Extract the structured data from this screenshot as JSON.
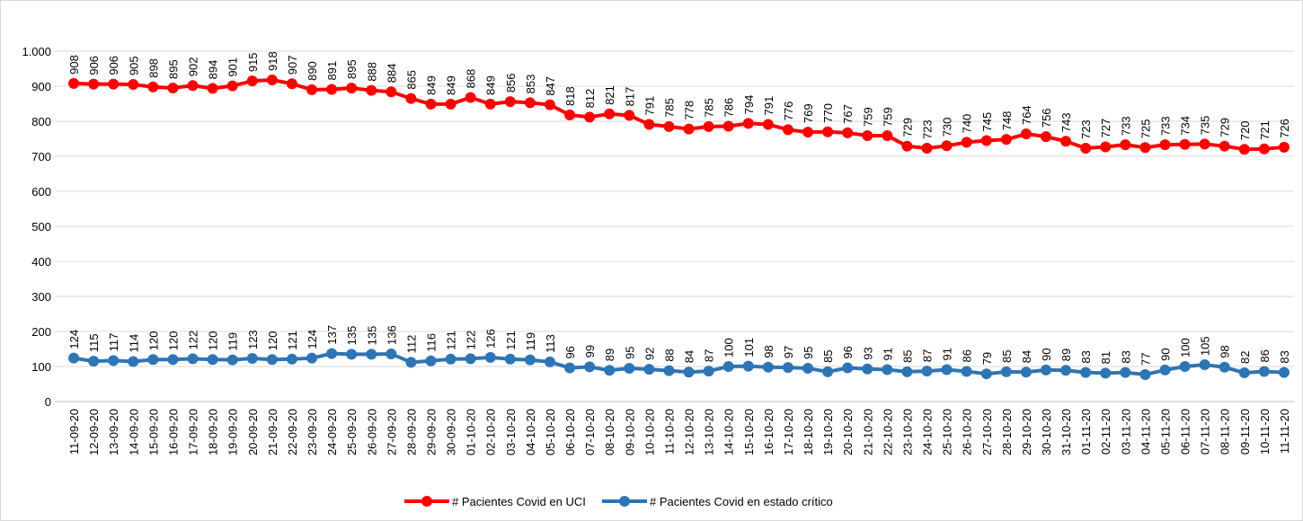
{
  "chart_data": {
    "type": "line",
    "categories": [
      "11-09-20",
      "12-09-20",
      "13-09-20",
      "14-09-20",
      "15-09-20",
      "16-09-20",
      "17-09-20",
      "18-09-20",
      "19-09-20",
      "20-09-20",
      "21-09-20",
      "22-09-20",
      "23-09-20",
      "24-09-20",
      "25-09-20",
      "26-09-20",
      "27-09-20",
      "28-09-20",
      "29-09-20",
      "30-09-20",
      "01-10-20",
      "02-10-20",
      "03-10-20",
      "04-10-20",
      "05-10-20",
      "06-10-20",
      "07-10-20",
      "08-10-20",
      "09-10-20",
      "10-10-20",
      "11-10-20",
      "12-10-20",
      "13-10-20",
      "14-10-20",
      "15-10-20",
      "16-10-20",
      "17-10-20",
      "18-10-20",
      "19-10-20",
      "20-10-20",
      "21-10-20",
      "22-10-20",
      "23-10-20",
      "24-10-20",
      "25-10-20",
      "26-10-20",
      "27-10-20",
      "28-10-20",
      "29-10-20",
      "30-10-20",
      "31-10-20",
      "01-11-20",
      "02-11-20",
      "03-11-20",
      "04-11-20",
      "05-11-20",
      "06-11-20",
      "07-11-20",
      "08-11-20",
      "09-11-20",
      "10-11-20",
      "11-11-20"
    ],
    "series": [
      {
        "name": "# Pacientes Covid en UCI",
        "color": "#ff0000",
        "values": [
          908,
          906,
          906,
          905,
          898,
          895,
          902,
          894,
          901,
          915,
          918,
          907,
          890,
          891,
          895,
          888,
          884,
          865,
          849,
          849,
          868,
          849,
          856,
          853,
          847,
          818,
          812,
          821,
          817,
          791,
          785,
          778,
          785,
          786,
          794,
          791,
          776,
          769,
          770,
          767,
          759,
          759,
          729,
          723,
          730,
          740,
          745,
          748,
          764,
          756,
          743,
          723,
          727,
          733,
          725,
          733,
          734,
          735,
          729,
          720,
          721,
          726
        ]
      },
      {
        "name": "# Pacientes Covid en estado crítico",
        "color": "#2e75b6",
        "values": [
          124,
          115,
          117,
          114,
          120,
          120,
          122,
          120,
          119,
          123,
          120,
          121,
          124,
          137,
          135,
          135,
          136,
          112,
          116,
          121,
          122,
          126,
          121,
          119,
          113,
          96,
          99,
          89,
          95,
          92,
          88,
          84,
          87,
          100,
          101,
          98,
          97,
          95,
          85,
          96,
          93,
          91,
          85,
          87,
          91,
          86,
          79,
          85,
          84,
          90,
          89,
          83,
          81,
          83,
          77,
          90,
          100,
          105,
          98,
          82,
          86,
          83
        ]
      }
    ],
    "ylim": [
      0,
      1000
    ],
    "yticks": [
      0,
      100,
      200,
      300,
      400,
      500,
      600,
      700,
      800,
      900,
      {
        "value": 1000,
        "label": "1.000"
      }
    ],
    "grid": true,
    "legend": "bottom"
  }
}
